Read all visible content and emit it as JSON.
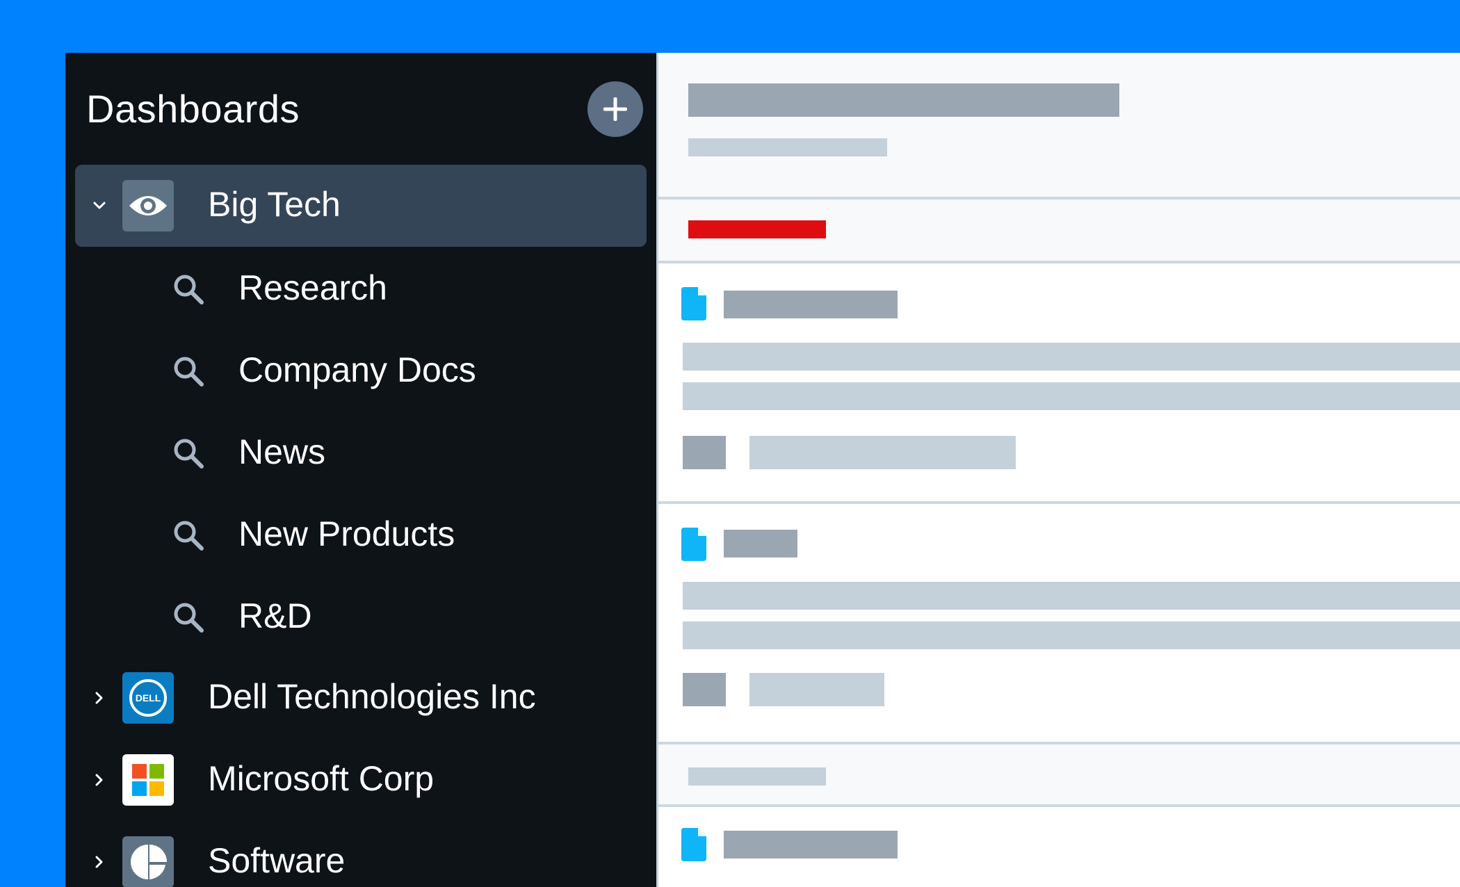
{
  "sidebar": {
    "title": "Dashboards",
    "add_icon": "plus-icon",
    "selected_item": {
      "label": "Big Tech",
      "icon": "eye-icon",
      "expanded": true
    },
    "sub_items": [
      {
        "label": "Research",
        "icon": "search-icon"
      },
      {
        "label": "Company Docs",
        "icon": "search-icon"
      },
      {
        "label": "News",
        "icon": "search-icon"
      },
      {
        "label": "New Products",
        "icon": "search-icon"
      },
      {
        "label": "R&D",
        "icon": "search-icon"
      }
    ],
    "items": [
      {
        "label": "Dell Technologies Inc",
        "logo_text": "DELL",
        "icon": "dell-logo-icon"
      },
      {
        "label": "Microsoft Corp",
        "icon": "microsoft-logo-icon"
      },
      {
        "label": "Software",
        "icon": "software-logo-icon"
      }
    ]
  },
  "colors": {
    "page_background": "#0082FF",
    "sidebar_background": "#0E1318",
    "selected_background": "#344558",
    "accent_red": "#DF0D10",
    "doc_icon": "#0FB5F7"
  }
}
